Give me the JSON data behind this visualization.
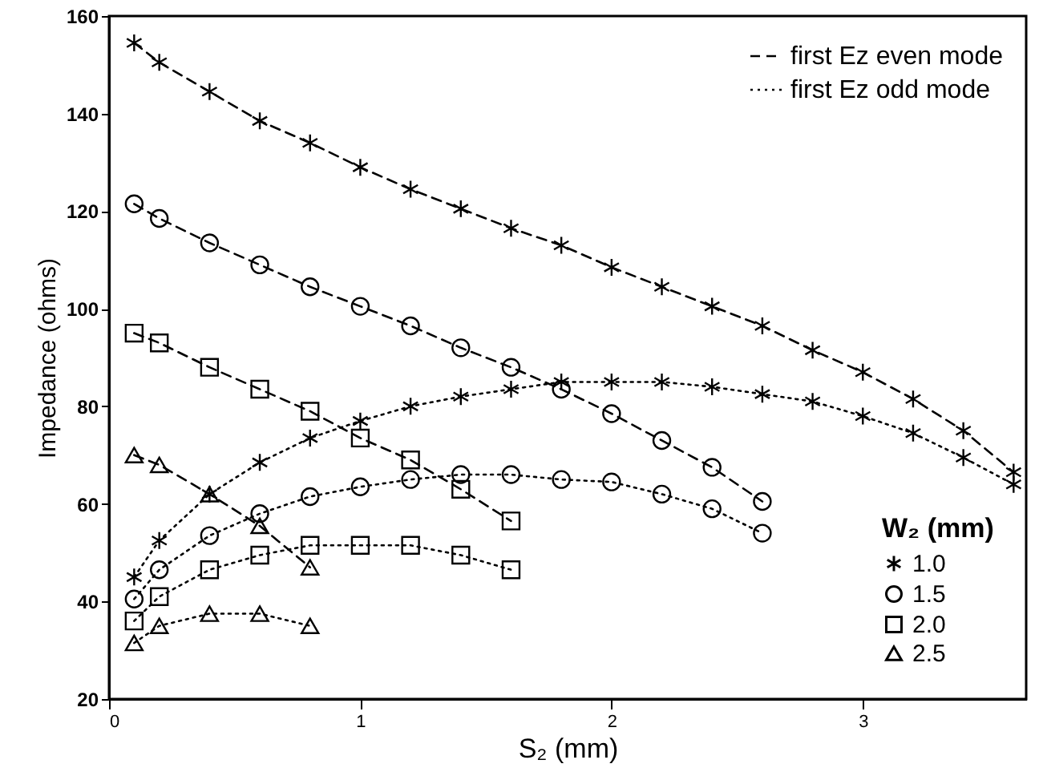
{
  "chart_data": {
    "type": "line",
    "xlabel": "S₂ (mm)",
    "ylabel": "Impedance (ohms)",
    "legend_title": "W₂ (mm)",
    "annotations": [
      "first Ez even mode",
      "first Ez odd mode"
    ],
    "xlim": [
      0,
      3.65
    ],
    "xticks": [
      0,
      1,
      2,
      3
    ],
    "ylim": [
      20,
      160
    ],
    "yticks": [
      20,
      40,
      60,
      80,
      100,
      120,
      140,
      160
    ],
    "grid": false,
    "legend": "right",
    "series": [
      {
        "name": "1.0",
        "color": "#000000",
        "marker": "cross",
        "line_style": "dashed",
        "x": [
          0.1,
          0.2,
          0.4,
          0.6,
          0.8,
          1.0,
          1.2,
          1.4,
          1.6,
          1.8,
          2.0,
          2.2,
          2.4,
          2.6,
          2.8,
          3.0,
          3.2,
          3.4,
          3.6
        ],
        "values": [
          154.5,
          150.5,
          144.5,
          138.5,
          134,
          129,
          124.5,
          120.5,
          116.5,
          113,
          108.5,
          104.5,
          100.5,
          96.5,
          91.5,
          87,
          81.5,
          75,
          66.5
        ]
      },
      {
        "name": "1.5",
        "color": "#000000",
        "marker": "circle",
        "line_style": "dashed",
        "x": [
          0.1,
          0.2,
          0.4,
          0.6,
          0.8,
          1.0,
          1.2,
          1.4,
          1.6,
          1.8,
          2.0,
          2.2,
          2.4,
          2.6
        ],
        "values": [
          121.5,
          118.5,
          113.5,
          109,
          104.5,
          100.5,
          96.5,
          92,
          88,
          83.5,
          78.5,
          73,
          67.5,
          60.5
        ]
      },
      {
        "name": "2.0",
        "color": "#000000",
        "marker": "square",
        "line_style": "dashed",
        "x": [
          0.1,
          0.2,
          0.4,
          0.6,
          0.8,
          1.0,
          1.2,
          1.4,
          1.6
        ],
        "values": [
          95,
          93,
          88,
          83.5,
          79,
          73.5,
          69,
          63,
          56.5
        ]
      },
      {
        "name": "2.5",
        "color": "#000000",
        "marker": "triangle",
        "line_style": "dashed",
        "x": [
          0.1,
          0.2,
          0.4,
          0.6,
          0.8
        ],
        "values": [
          70,
          68,
          62,
          55.5,
          47
        ]
      },
      {
        "color": "#000000",
        "marker": "cross",
        "line_style": "dotted",
        "x": [
          0.1,
          0.2,
          0.4,
          0.6,
          0.8,
          1.0,
          1.2,
          1.4,
          1.6,
          1.8,
          2.0,
          2.2,
          2.4,
          2.6,
          2.8,
          3.0,
          3.2,
          3.4,
          3.6
        ],
        "values": [
          45,
          52.5,
          62,
          68.5,
          73.5,
          77,
          80,
          82,
          83.5,
          85,
          85,
          85,
          84,
          82.5,
          81,
          78,
          74.5,
          69.5,
          64
        ]
      },
      {
        "color": "#000000",
        "marker": "circle",
        "line_style": "dotted",
        "x": [
          0.1,
          0.2,
          0.4,
          0.6,
          0.8,
          1.0,
          1.2,
          1.4,
          1.6,
          1.8,
          2.0,
          2.2,
          2.4,
          2.6
        ],
        "values": [
          40.5,
          46.5,
          53.5,
          58,
          61.5,
          63.5,
          65,
          66,
          66,
          65,
          64.5,
          62,
          59,
          54
        ]
      },
      {
        "color": "#000000",
        "marker": "square",
        "line_style": "dotted",
        "x": [
          0.1,
          0.2,
          0.4,
          0.6,
          0.8,
          1.0,
          1.2,
          1.4,
          1.6
        ],
        "values": [
          36,
          41,
          46.5,
          49.5,
          51.5,
          51.5,
          51.5,
          49.5,
          46.5
        ]
      },
      {
        "color": "#000000",
        "marker": "triangle",
        "line_style": "dotted",
        "x": [
          0.1,
          0.2,
          0.4,
          0.6,
          0.8
        ],
        "values": [
          31.5,
          35,
          37.5,
          37.5,
          35
        ]
      }
    ]
  }
}
